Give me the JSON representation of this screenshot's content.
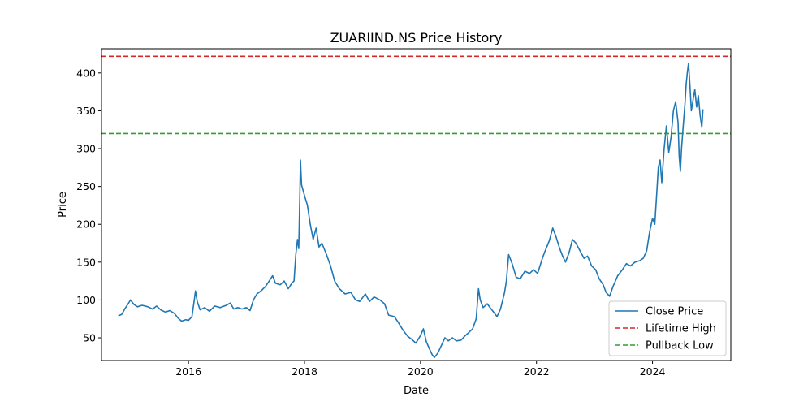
{
  "chart_data": {
    "type": "line",
    "title": "ZUARIIND.NS Price History",
    "xlabel": "Date",
    "ylabel": "Price",
    "xlim": [
      2014.5,
      2025.35
    ],
    "ylim": [
      20,
      432
    ],
    "x_ticks": [
      2016,
      2018,
      2020,
      2022,
      2024
    ],
    "x_tick_labels": [
      "2016",
      "2018",
      "2020",
      "2022",
      "2024"
    ],
    "y_ticks": [
      50,
      100,
      150,
      200,
      250,
      300,
      350,
      400
    ],
    "y_tick_labels": [
      "50",
      "100",
      "150",
      "200",
      "250",
      "300",
      "350",
      "400"
    ],
    "grid": false,
    "legend_position": "lower-right",
    "series": [
      {
        "name": "Close Price",
        "color": "#1f77b4",
        "style": "solid",
        "points": [
          [
            2014.79,
            79
          ],
          [
            2014.85,
            81
          ],
          [
            2014.9,
            88
          ],
          [
            2014.96,
            95
          ],
          [
            2015.0,
            100
          ],
          [
            2015.06,
            94
          ],
          [
            2015.12,
            91
          ],
          [
            2015.2,
            93
          ],
          [
            2015.3,
            91
          ],
          [
            2015.38,
            88
          ],
          [
            2015.45,
            92
          ],
          [
            2015.52,
            87
          ],
          [
            2015.6,
            84
          ],
          [
            2015.68,
            86
          ],
          [
            2015.76,
            82
          ],
          [
            2015.82,
            76
          ],
          [
            2015.88,
            72
          ],
          [
            2015.95,
            74
          ],
          [
            2016.0,
            73
          ],
          [
            2016.06,
            78
          ],
          [
            2016.1,
            100
          ],
          [
            2016.12,
            112
          ],
          [
            2016.15,
            98
          ],
          [
            2016.2,
            87
          ],
          [
            2016.28,
            90
          ],
          [
            2016.36,
            85
          ],
          [
            2016.45,
            92
          ],
          [
            2016.55,
            90
          ],
          [
            2016.65,
            93
          ],
          [
            2016.72,
            96
          ],
          [
            2016.78,
            88
          ],
          [
            2016.85,
            90
          ],
          [
            2016.92,
            88
          ],
          [
            2017.0,
            90
          ],
          [
            2017.06,
            86
          ],
          [
            2017.12,
            100
          ],
          [
            2017.18,
            108
          ],
          [
            2017.25,
            112
          ],
          [
            2017.33,
            118
          ],
          [
            2017.4,
            126
          ],
          [
            2017.45,
            132
          ],
          [
            2017.5,
            122
          ],
          [
            2017.58,
            120
          ],
          [
            2017.65,
            125
          ],
          [
            2017.72,
            115
          ],
          [
            2017.78,
            122
          ],
          [
            2017.82,
            125
          ],
          [
            2017.85,
            160
          ],
          [
            2017.88,
            180
          ],
          [
            2017.9,
            168
          ],
          [
            2017.92,
            240
          ],
          [
            2017.93,
            285
          ],
          [
            2017.95,
            252
          ],
          [
            2018.0,
            238
          ],
          [
            2018.05,
            225
          ],
          [
            2018.1,
            200
          ],
          [
            2018.15,
            180
          ],
          [
            2018.2,
            195
          ],
          [
            2018.25,
            170
          ],
          [
            2018.3,
            175
          ],
          [
            2018.38,
            160
          ],
          [
            2018.45,
            145
          ],
          [
            2018.52,
            125
          ],
          [
            2018.6,
            115
          ],
          [
            2018.7,
            108
          ],
          [
            2018.8,
            110
          ],
          [
            2018.88,
            100
          ],
          [
            2018.95,
            98
          ],
          [
            2019.05,
            108
          ],
          [
            2019.12,
            98
          ],
          [
            2019.2,
            104
          ],
          [
            2019.3,
            100
          ],
          [
            2019.38,
            95
          ],
          [
            2019.45,
            80
          ],
          [
            2019.55,
            78
          ],
          [
            2019.62,
            70
          ],
          [
            2019.7,
            60
          ],
          [
            2019.78,
            52
          ],
          [
            2019.85,
            48
          ],
          [
            2019.92,
            43
          ],
          [
            2020.0,
            53
          ],
          [
            2020.05,
            62
          ],
          [
            2020.1,
            45
          ],
          [
            2020.15,
            36
          ],
          [
            2020.2,
            28
          ],
          [
            2020.24,
            24
          ],
          [
            2020.3,
            30
          ],
          [
            2020.36,
            40
          ],
          [
            2020.42,
            50
          ],
          [
            2020.48,
            46
          ],
          [
            2020.55,
            50
          ],
          [
            2020.62,
            46
          ],
          [
            2020.7,
            47
          ],
          [
            2020.76,
            52
          ],
          [
            2020.82,
            56
          ],
          [
            2020.9,
            62
          ],
          [
            2020.96,
            75
          ],
          [
            2021.0,
            115
          ],
          [
            2021.03,
            100
          ],
          [
            2021.08,
            90
          ],
          [
            2021.15,
            95
          ],
          [
            2021.25,
            85
          ],
          [
            2021.32,
            78
          ],
          [
            2021.38,
            88
          ],
          [
            2021.45,
            110
          ],
          [
            2021.48,
            125
          ],
          [
            2021.52,
            160
          ],
          [
            2021.58,
            148
          ],
          [
            2021.65,
            130
          ],
          [
            2021.72,
            128
          ],
          [
            2021.8,
            138
          ],
          [
            2021.88,
            135
          ],
          [
            2021.95,
            140
          ],
          [
            2022.02,
            135
          ],
          [
            2022.1,
            155
          ],
          [
            2022.15,
            165
          ],
          [
            2022.22,
            178
          ],
          [
            2022.28,
            195
          ],
          [
            2022.33,
            185
          ],
          [
            2022.4,
            168
          ],
          [
            2022.45,
            158
          ],
          [
            2022.5,
            150
          ],
          [
            2022.56,
            162
          ],
          [
            2022.62,
            180
          ],
          [
            2022.68,
            175
          ],
          [
            2022.75,
            165
          ],
          [
            2022.82,
            155
          ],
          [
            2022.88,
            158
          ],
          [
            2022.95,
            145
          ],
          [
            2023.02,
            140
          ],
          [
            2023.08,
            128
          ],
          [
            2023.15,
            120
          ],
          [
            2023.2,
            110
          ],
          [
            2023.26,
            105
          ],
          [
            2023.32,
            118
          ],
          [
            2023.4,
            132
          ],
          [
            2023.48,
            140
          ],
          [
            2023.55,
            148
          ],
          [
            2023.62,
            145
          ],
          [
            2023.7,
            150
          ],
          [
            2023.78,
            152
          ],
          [
            2023.84,
            155
          ],
          [
            2023.9,
            165
          ],
          [
            2023.95,
            190
          ],
          [
            2024.0,
            208
          ],
          [
            2024.04,
            200
          ],
          [
            2024.08,
            250
          ],
          [
            2024.1,
            275
          ],
          [
            2024.13,
            285
          ],
          [
            2024.16,
            255
          ],
          [
            2024.2,
            300
          ],
          [
            2024.24,
            330
          ],
          [
            2024.28,
            295
          ],
          [
            2024.32,
            315
          ],
          [
            2024.36,
            350
          ],
          [
            2024.4,
            362
          ],
          [
            2024.44,
            335
          ],
          [
            2024.46,
            290
          ],
          [
            2024.48,
            270
          ],
          [
            2024.5,
            300
          ],
          [
            2024.53,
            330
          ],
          [
            2024.56,
            360
          ],
          [
            2024.58,
            385
          ],
          [
            2024.6,
            400
          ],
          [
            2024.62,
            413
          ],
          [
            2024.64,
            390
          ],
          [
            2024.67,
            350
          ],
          [
            2024.7,
            365
          ],
          [
            2024.73,
            378
          ],
          [
            2024.76,
            355
          ],
          [
            2024.79,
            370
          ],
          [
            2024.82,
            345
          ],
          [
            2024.85,
            328
          ],
          [
            2024.87,
            352
          ]
        ]
      },
      {
        "name": "Lifetime High",
        "color": "#d62728",
        "style": "dashed",
        "y": 422
      },
      {
        "name": "Pullback Low",
        "color": "#2ca02c",
        "style": "dashed",
        "y": 320
      }
    ]
  }
}
